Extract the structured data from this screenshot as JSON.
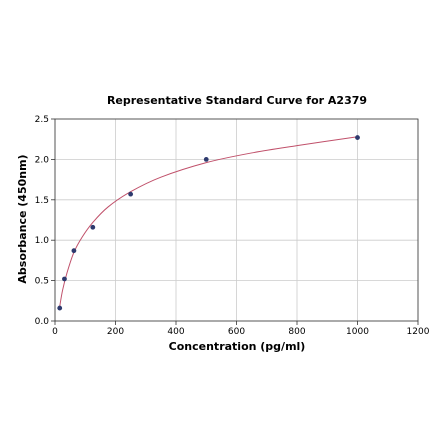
{
  "chart_data": {
    "type": "scatter",
    "title": "Representative Standard Curve for A2379",
    "xlabel": "Concentration (pg/ml)",
    "ylabel": "Absorbance (450nm)",
    "xlim": [
      0,
      1200
    ],
    "ylim": [
      0,
      2.5
    ],
    "x_ticks": [
      "0",
      "200",
      "400",
      "600",
      "800",
      "1000",
      "1200"
    ],
    "y_ticks": [
      "0.0",
      "0.5",
      "1.0",
      "1.5",
      "2.0",
      "2.5"
    ],
    "grid": true,
    "legend": "none",
    "series": [
      {
        "kind": "points",
        "x": [
          15.6,
          31.25,
          62.5,
          125,
          250,
          500,
          1000
        ],
        "y": [
          0.16,
          0.52,
          0.87,
          1.16,
          1.57,
          2.0,
          2.27
        ]
      },
      {
        "kind": "fit-curve",
        "x": [
          15.6,
          25,
          40,
          62.5,
          90,
          125,
          175,
          250,
          350,
          500,
          650,
          800,
          1000
        ],
        "y": [
          0.18,
          0.38,
          0.6,
          0.85,
          1.04,
          1.22,
          1.41,
          1.6,
          1.78,
          1.96,
          2.08,
          2.17,
          2.28
        ]
      }
    ],
    "colors": {
      "points": "#2e3a6e",
      "curve": "#c0506a"
    }
  }
}
